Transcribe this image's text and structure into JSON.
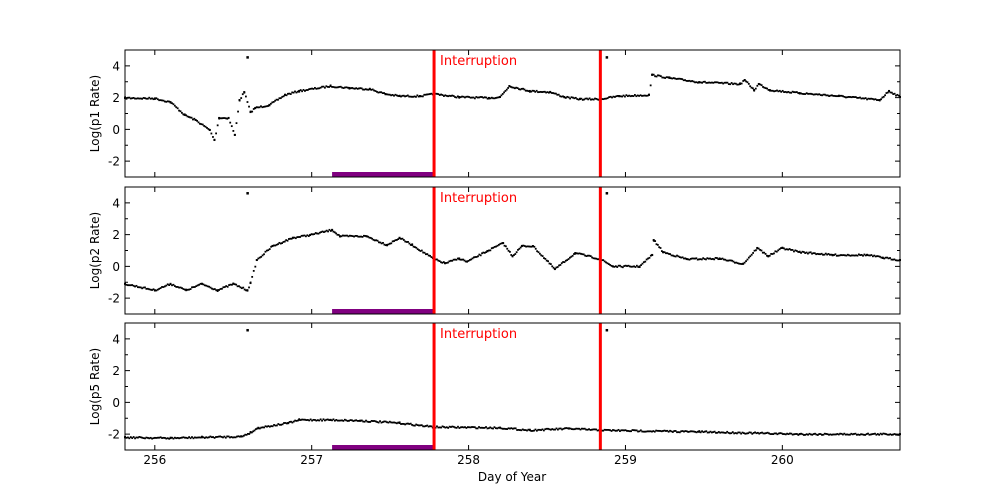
{
  "chart_data": [
    {
      "type": "scatter",
      "ylabel": "Log(p1 Rate)",
      "xlim": [
        255.81,
        260.75
      ],
      "ylim": [
        -3,
        5
      ],
      "yticks": [
        -2,
        0,
        2,
        4
      ],
      "annotation": "Interruption",
      "series": [
        {
          "points": [
            [
              255.81,
              1.98
            ],
            [
              256.0,
              1.95
            ],
            [
              256.1,
              1.72
            ],
            [
              256.19,
              0.91
            ],
            [
              256.26,
              0.59
            ],
            [
              256.35,
              -0.04
            ],
            [
              256.38,
              -0.67
            ],
            [
              256.41,
              0.72
            ],
            [
              256.47,
              0.72
            ],
            [
              256.51,
              -0.35
            ],
            [
              256.54,
              1.85
            ],
            [
              256.57,
              2.35
            ],
            [
              256.61,
              1.09
            ],
            [
              256.64,
              1.35
            ],
            [
              256.73,
              1.54
            ],
            [
              256.83,
              2.17
            ],
            [
              256.92,
              2.42
            ],
            [
              257.12,
              2.73
            ],
            [
              257.24,
              2.61
            ],
            [
              257.37,
              2.54
            ],
            [
              257.47,
              2.23
            ],
            [
              257.56,
              2.1
            ],
            [
              257.69,
              2.1
            ],
            [
              257.78,
              2.23
            ],
            [
              257.94,
              2.04
            ],
            [
              258.13,
              1.98
            ],
            [
              258.2,
              2.04
            ],
            [
              258.26,
              2.73
            ],
            [
              258.39,
              2.42
            ],
            [
              258.52,
              2.35
            ],
            [
              258.61,
              2.04
            ],
            [
              258.71,
              1.91
            ],
            [
              258.84,
              1.91
            ],
            [
              258.96,
              2.1
            ],
            [
              259.15,
              2.17
            ],
            [
              259.17,
              3.43
            ],
            [
              259.28,
              3.24
            ],
            [
              259.47,
              2.98
            ],
            [
              259.73,
              2.86
            ],
            [
              259.76,
              3.11
            ],
            [
              259.82,
              2.48
            ],
            [
              259.85,
              2.86
            ],
            [
              259.92,
              2.48
            ],
            [
              260.11,
              2.29
            ],
            [
              260.36,
              2.1
            ],
            [
              260.62,
              1.85
            ],
            [
              260.68,
              2.42
            ],
            [
              260.75,
              2.04
            ]
          ]
        }
      ],
      "outliers": [
        [
          256.59,
          4.55
        ],
        [
          258.88,
          4.55
        ]
      ],
      "vlines": [
        257.78,
        258.84
      ],
      "span": [
        257.13,
        257.78
      ],
      "colors": {
        "points": "#000000",
        "vline": "#ff0000",
        "span": "#800080"
      }
    },
    {
      "type": "scatter",
      "ylabel": "Log(p2 Rate)",
      "xlim": [
        255.81,
        260.75
      ],
      "ylim": [
        -3,
        5
      ],
      "yticks": [
        -2,
        0,
        2,
        4
      ],
      "annotation": "Interruption",
      "series": [
        {
          "points": [
            [
              255.81,
              -1.1
            ],
            [
              256.0,
              -1.5
            ],
            [
              256.1,
              -1.1
            ],
            [
              256.2,
              -1.5
            ],
            [
              256.3,
              -1.1
            ],
            [
              256.4,
              -1.5
            ],
            [
              256.5,
              -1.1
            ],
            [
              256.59,
              -1.5
            ],
            [
              256.61,
              -1.05
            ],
            [
              256.65,
              0.4
            ],
            [
              256.75,
              1.28
            ],
            [
              256.88,
              1.8
            ],
            [
              256.99,
              1.98
            ],
            [
              257.13,
              2.3
            ],
            [
              257.18,
              1.9
            ],
            [
              257.35,
              1.9
            ],
            [
              257.48,
              1.35
            ],
            [
              257.56,
              1.8
            ],
            [
              257.64,
              1.35
            ],
            [
              257.78,
              0.46
            ],
            [
              257.85,
              0.2
            ],
            [
              257.94,
              0.5
            ],
            [
              257.99,
              0.3
            ],
            [
              258.12,
              0.97
            ],
            [
              258.22,
              1.47
            ],
            [
              258.28,
              0.65
            ],
            [
              258.34,
              1.28
            ],
            [
              258.41,
              1.28
            ],
            [
              258.55,
              -0.17
            ],
            [
              258.68,
              0.84
            ],
            [
              258.84,
              0.46
            ],
            [
              258.92,
              0.0
            ],
            [
              259.09,
              0.0
            ],
            [
              259.17,
              0.72
            ],
            [
              259.18,
              1.66
            ],
            [
              259.24,
              0.9
            ],
            [
              259.39,
              0.46
            ],
            [
              259.6,
              0.5
            ],
            [
              259.75,
              0.16
            ],
            [
              259.84,
              1.16
            ],
            [
              259.91,
              0.65
            ],
            [
              260.0,
              1.16
            ],
            [
              260.11,
              0.91
            ],
            [
              260.32,
              0.72
            ],
            [
              260.54,
              0.72
            ],
            [
              260.64,
              0.55
            ],
            [
              260.75,
              0.4
            ]
          ]
        }
      ],
      "outliers": [
        [
          256.59,
          4.62
        ],
        [
          258.88,
          4.62
        ]
      ],
      "vlines": [
        257.78,
        258.84
      ],
      "span": [
        257.13,
        257.78
      ],
      "colors": {
        "points": "#000000",
        "vline": "#ff0000",
        "span": "#800080"
      }
    },
    {
      "type": "scatter",
      "ylabel": "Log(p5 Rate)",
      "xlabel": "Day of Year",
      "xlim": [
        255.81,
        260.75
      ],
      "ylim": [
        -3,
        5
      ],
      "xticks": [
        256,
        257,
        258,
        259,
        260
      ],
      "yticks": [
        -2,
        0,
        2,
        4
      ],
      "annotation": "Interruption",
      "series": [
        {
          "points": [
            [
              255.81,
              -2.2
            ],
            [
              256.1,
              -2.25
            ],
            [
              256.3,
              -2.2
            ],
            [
              256.55,
              -2.15
            ],
            [
              256.61,
              -1.9
            ],
            [
              256.66,
              -1.6
            ],
            [
              256.85,
              -1.3
            ],
            [
              256.92,
              -1.1
            ],
            [
              257.12,
              -1.1
            ],
            [
              257.31,
              -1.15
            ],
            [
              257.56,
              -1.3
            ],
            [
              257.78,
              -1.55
            ],
            [
              258.2,
              -1.6
            ],
            [
              258.39,
              -1.75
            ],
            [
              258.64,
              -1.65
            ],
            [
              258.84,
              -1.75
            ],
            [
              259.47,
              -1.85
            ],
            [
              260.11,
              -2.0
            ],
            [
              260.75,
              -2.0
            ]
          ]
        }
      ],
      "outliers": [
        [
          256.59,
          4.56
        ],
        [
          258.88,
          4.56
        ]
      ],
      "vlines": [
        257.78,
        258.84
      ],
      "span": [
        257.13,
        257.78
      ],
      "colors": {
        "points": "#000000",
        "vline": "#ff0000",
        "span": "#800080"
      }
    }
  ]
}
